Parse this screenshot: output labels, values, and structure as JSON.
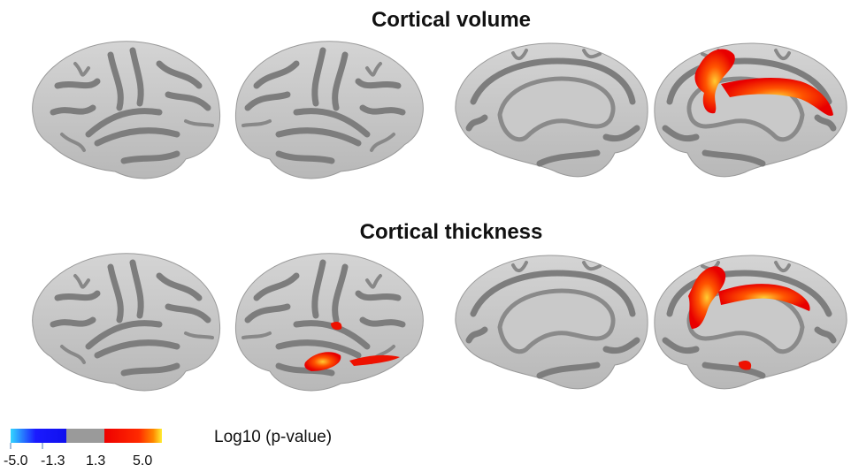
{
  "titles": [
    "Cortical volume",
    "Cortical thickness"
  ],
  "colorbar": {
    "label": "Log10 (p-value)",
    "ticks": [
      "-5.0",
      "-1.3",
      "1.3",
      "5.0"
    ]
  }
}
